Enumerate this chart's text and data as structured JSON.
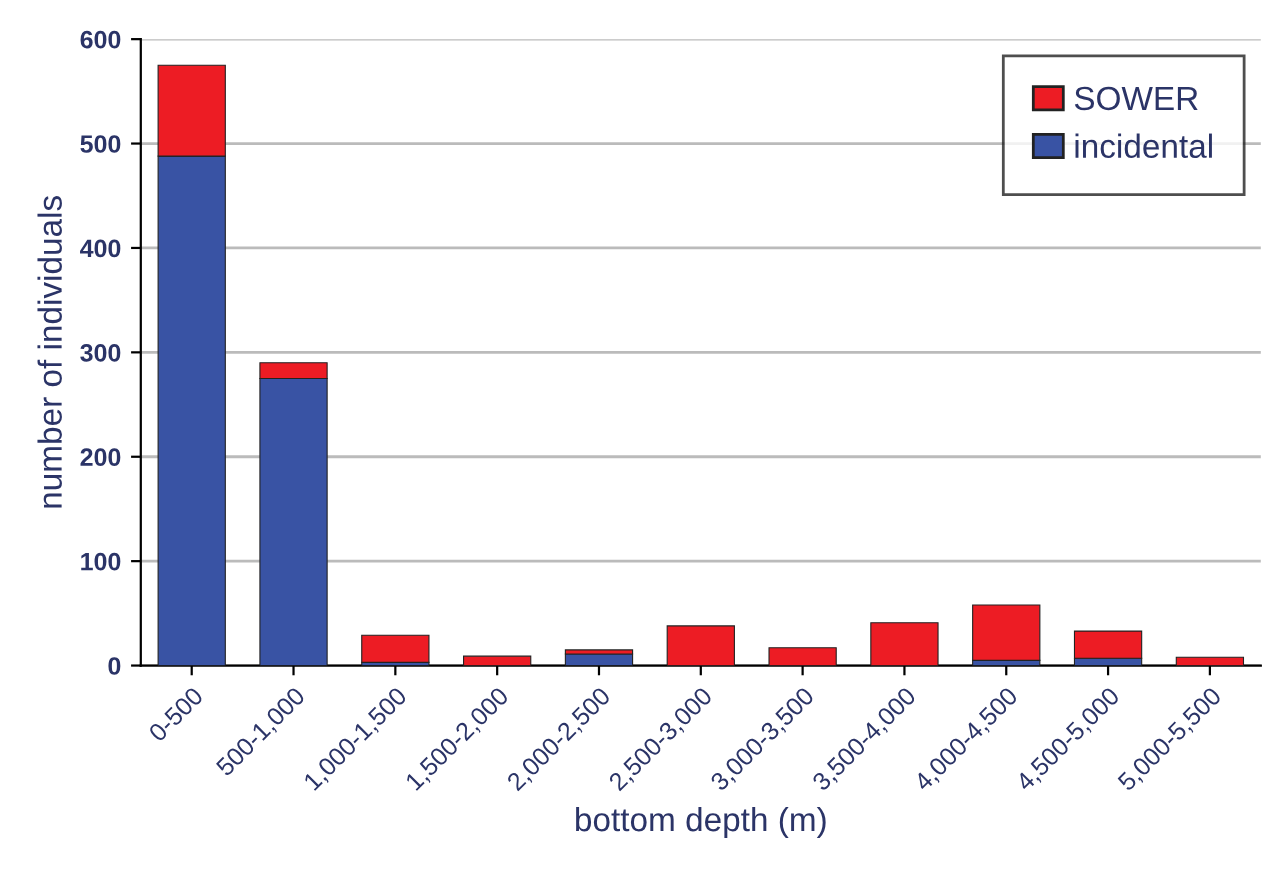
{
  "chart_data": {
    "type": "bar",
    "stacked": true,
    "xlabel": "bottom depth (m)",
    "ylabel": "number of individuals",
    "categories": [
      "0-500",
      "500-1,000",
      "1,000-1,500",
      "1,500-2,000",
      "2,000-2,500",
      "2,500-3,000",
      "3,000-3,500",
      "3,500-4,000",
      "4,000-4,500",
      "4,500-5,000",
      "5,000-5,500"
    ],
    "series": [
      {
        "name": "incidental",
        "color": "#3953a4",
        "values": [
          488,
          275,
          3,
          null,
          11,
          0,
          0,
          0,
          5,
          7,
          0
        ]
      },
      {
        "name": "SOWER",
        "color": "#ed1c24",
        "values": [
          87,
          15,
          26,
          9,
          4,
          38,
          17,
          41,
          53,
          26,
          8
        ]
      }
    ],
    "ylim": [
      0,
      600
    ],
    "yticks": [
      0,
      100,
      200,
      300,
      400,
      500,
      600
    ],
    "grid": "y",
    "legend": "top right"
  }
}
